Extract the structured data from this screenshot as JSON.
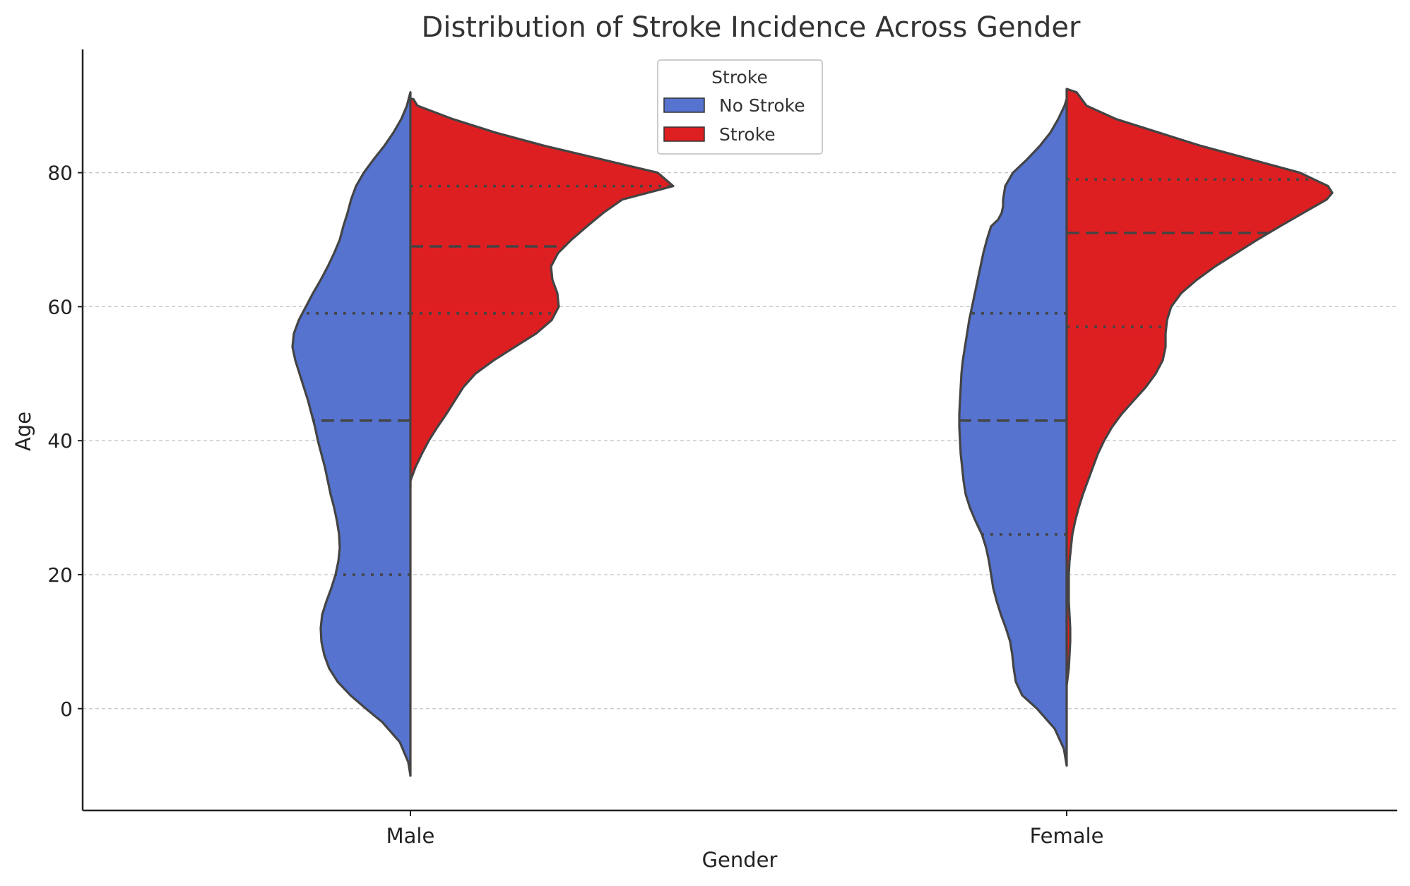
{
  "colors": {
    "no_stroke": "#5573cf",
    "stroke": "#de1f21",
    "outline": "#444444",
    "grid": "#c4c4c4",
    "axis": "#222222",
    "text": "#333333"
  },
  "chart_data": {
    "type": "violin",
    "title": "Distribution of Stroke Incidence Across Gender",
    "xlabel": "Gender",
    "ylabel": "Age",
    "ylim": [
      -15.2,
      98.4
    ],
    "yticks": [
      0,
      20,
      40,
      60,
      80
    ],
    "ytick_labels": [
      "0",
      "20",
      "40",
      "60",
      "80"
    ],
    "grid": "y-dashed",
    "split": true,
    "inner": "quartile",
    "categories": [
      "Male",
      "Female"
    ],
    "legend": {
      "title": "Stroke",
      "position": "top-center",
      "entries": [
        "No Stroke",
        "Stroke"
      ]
    },
    "series": [
      {
        "name": "No Stroke",
        "side": "left",
        "color_key": "no_stroke",
        "violins": [
          {
            "category": "Male",
            "quartiles": [
              20,
              43,
              59
            ],
            "profile": [
              [
                -10,
                0
              ],
              [
                -8,
                3
              ],
              [
                -5,
                15
              ],
              [
                -2,
                40
              ],
              [
                0,
                63
              ],
              [
                2,
                85
              ],
              [
                4,
                103
              ],
              [
                6,
                115
              ],
              [
                8,
                122
              ],
              [
                10,
                126
              ],
              [
                12,
                127
              ],
              [
                14,
                125
              ],
              [
                16,
                119
              ],
              [
                18,
                112
              ],
              [
                20,
                106
              ],
              [
                22,
                102
              ],
              [
                24,
                100
              ],
              [
                26,
                101
              ],
              [
                28,
                104
              ],
              [
                30,
                108
              ],
              [
                32,
                113
              ],
              [
                34,
                117
              ],
              [
                36,
                121
              ],
              [
                38,
                126
              ],
              [
                40,
                131
              ],
              [
                42,
                135
              ],
              [
                44,
                140
              ],
              [
                46,
                145
              ],
              [
                48,
                151
              ],
              [
                50,
                157
              ],
              [
                52,
                163
              ],
              [
                54,
                167
              ],
              [
                56,
                165
              ],
              [
                58,
                158
              ],
              [
                60,
                148
              ],
              [
                62,
                138
              ],
              [
                64,
                127
              ],
              [
                66,
                117
              ],
              [
                68,
                108
              ],
              [
                70,
                100
              ],
              [
                72,
                95
              ],
              [
                74,
                89
              ],
              [
                76,
                84
              ],
              [
                78,
                77
              ],
              [
                80,
                66
              ],
              [
                82,
                52
              ],
              [
                84,
                37
              ],
              [
                86,
                24
              ],
              [
                88,
                13
              ],
              [
                90,
                5
              ],
              [
                92,
                0
              ]
            ]
          },
          {
            "category": "Female",
            "quartiles": [
              26,
              43,
              59
            ],
            "profile": [
              [
                -8.5,
                0
              ],
              [
                -6,
                4
              ],
              [
                -3,
                17
              ],
              [
                0,
                42
              ],
              [
                2,
                63
              ],
              [
                4,
                72
              ],
              [
                6,
                75
              ],
              [
                8,
                77
              ],
              [
                10,
                80
              ],
              [
                12,
                86
              ],
              [
                14,
                93
              ],
              [
                16,
                99
              ],
              [
                18,
                104
              ],
              [
                20,
                107
              ],
              [
                22,
                110
              ],
              [
                24,
                114
              ],
              [
                26,
                120
              ],
              [
                28,
                129
              ],
              [
                30,
                137
              ],
              [
                32,
                143
              ],
              [
                34,
                146
              ],
              [
                36,
                148
              ],
              [
                38,
                150
              ],
              [
                40,
                151
              ],
              [
                42,
                152
              ],
              [
                44,
                152
              ],
              [
                46,
                151
              ],
              [
                48,
                150
              ],
              [
                50,
                149
              ],
              [
                52,
                147
              ],
              [
                54,
                144
              ],
              [
                56,
                141
              ],
              [
                58,
                138
              ],
              [
                60,
                134
              ],
              [
                62,
                130
              ],
              [
                64,
                126
              ],
              [
                66,
                122
              ],
              [
                68,
                118
              ],
              [
                70,
                113
              ],
              [
                72,
                107
              ],
              [
                73,
                97
              ],
              [
                74,
                92
              ],
              [
                75,
                90
              ],
              [
                76,
                90
              ],
              [
                78,
                87
              ],
              [
                80,
                76
              ],
              [
                82,
                56
              ],
              [
                84,
                38
              ],
              [
                86,
                23
              ],
              [
                88,
                12
              ],
              [
                90,
                3
              ],
              [
                91,
                0
              ]
            ]
          }
        ]
      },
      {
        "name": "Stroke",
        "side": "right",
        "color_key": "stroke",
        "violins": [
          {
            "category": "Male",
            "quartiles": [
              59,
              69,
              78
            ],
            "profile": [
              [
                33,
                0
              ],
              [
                34,
                0
              ],
              [
                36,
                7
              ],
              [
                38,
                16
              ],
              [
                40,
                26
              ],
              [
                42,
                38
              ],
              [
                44,
                51
              ],
              [
                46,
                63
              ],
              [
                48,
                75
              ],
              [
                50,
                92
              ],
              [
                52,
                118
              ],
              [
                54,
                148
              ],
              [
                56,
                178
              ],
              [
                58,
                200
              ],
              [
                60,
                210
              ],
              [
                62,
                208
              ],
              [
                64,
                201
              ],
              [
                66,
                199
              ],
              [
                68,
                209
              ],
              [
                70,
                228
              ],
              [
                72,
                250
              ],
              [
                74,
                273
              ],
              [
                76,
                300
              ],
              [
                78,
                372
              ],
              [
                80,
                350
              ],
              [
                82,
                270
              ],
              [
                84,
                190
              ],
              [
                86,
                120
              ],
              [
                88,
                60
              ],
              [
                90,
                10
              ],
              [
                91,
                4
              ],
              [
                91,
                0
              ]
            ]
          },
          {
            "category": "Female",
            "quartiles": [
              57,
              71,
              79
            ],
            "profile": [
              [
                3.5,
                0
              ],
              [
                6,
                3
              ],
              [
                8,
                4
              ],
              [
                10,
                5
              ],
              [
                12,
                5
              ],
              [
                14,
                4
              ],
              [
                16,
                3
              ],
              [
                18,
                3
              ],
              [
                20,
                3
              ],
              [
                22,
                4
              ],
              [
                24,
                6
              ],
              [
                26,
                8
              ],
              [
                28,
                12
              ],
              [
                30,
                17
              ],
              [
                32,
                23
              ],
              [
                34,
                30
              ],
              [
                36,
                37
              ],
              [
                38,
                44
              ],
              [
                40,
                53
              ],
              [
                42,
                64
              ],
              [
                44,
                78
              ],
              [
                46,
                95
              ],
              [
                48,
                112
              ],
              [
                50,
                126
              ],
              [
                52,
                136
              ],
              [
                54,
                140
              ],
              [
                56,
                140
              ],
              [
                58,
                142
              ],
              [
                60,
                148
              ],
              [
                62,
                162
              ],
              [
                64,
                184
              ],
              [
                66,
                210
              ],
              [
                68,
                240
              ],
              [
                70,
                270
              ],
              [
                72,
                302
              ],
              [
                74,
                335
              ],
              [
                76,
                368
              ],
              [
                77,
                376
              ],
              [
                78,
                370
              ],
              [
                80,
                330
              ],
              [
                82,
                260
              ],
              [
                84,
                190
              ],
              [
                86,
                130
              ],
              [
                88,
                70
              ],
              [
                90,
                28
              ],
              [
                92,
                14
              ],
              [
                92.5,
                0
              ]
            ]
          }
        ]
      }
    ]
  }
}
